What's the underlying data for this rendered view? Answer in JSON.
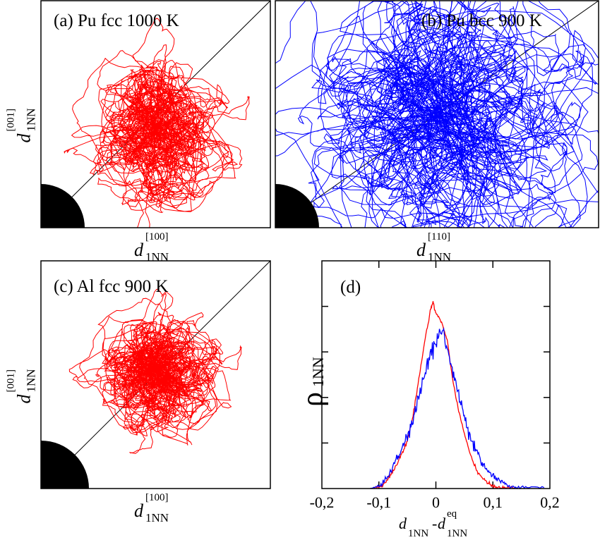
{
  "chart_data": [
    {
      "type": "line",
      "panel": "a",
      "title": "(a) Pu fcc 1000 K",
      "xlabel": {
        "symbol": "d",
        "superscript": "[100]",
        "subscript": "1NN"
      },
      "ylabel": {
        "symbol": "d",
        "superscript": "[001]",
        "subscript": "1NN"
      },
      "series": [
        {
          "color": "#ff0000"
        }
      ],
      "grid": false
    },
    {
      "type": "line",
      "panel": "b",
      "title": "(b) Pu bcc 900 K",
      "xlabel": {
        "symbol": "d",
        "superscript": "[110]",
        "subscript": "1NN"
      },
      "series": [
        {
          "color": "#0000ff"
        }
      ],
      "grid": false
    },
    {
      "type": "line",
      "panel": "c",
      "title": "(c) Al fcc 900 K",
      "xlabel": {
        "symbol": "d",
        "superscript": "[100]",
        "subscript": "1NN"
      },
      "ylabel": {
        "symbol": "d",
        "superscript": "[001]",
        "subscript": "1NN"
      },
      "series": [
        {
          "color": "#ff0000"
        }
      ],
      "grid": false
    },
    {
      "type": "line",
      "panel": "d",
      "title": "(d)",
      "xlabel": {
        "symbol1": "d",
        "sub1": "1NN",
        "sep": "-",
        "symbol2": "d",
        "sub2": "1NN",
        "sup2": "eq"
      },
      "ylabel": {
        "symbol": "ρ",
        "subscript": "1NN"
      },
      "xlim": [
        -0.2,
        0.2
      ],
      "ylim": [
        0,
        5
      ],
      "xticks": [
        "-0,2",
        "-0,1",
        "0",
        "0,1",
        "0,2"
      ],
      "xtick_values": [
        -0.2,
        -0.1,
        0,
        0.1,
        0.2
      ],
      "grid": false,
      "series": [
        {
          "color": "#ff0000",
          "x": [
            -0.11,
            -0.1,
            -0.09,
            -0.08,
            -0.07,
            -0.06,
            -0.05,
            -0.04,
            -0.03,
            -0.02,
            -0.01,
            -0.005,
            0,
            0.01,
            0.02,
            0.03,
            0.04,
            0.05,
            0.06,
            0.07,
            0.08,
            0.09,
            0.1,
            0.11,
            0.12,
            0.13,
            0.14
          ],
          "y": [
            0,
            0.04,
            0.12,
            0.28,
            0.5,
            0.75,
            1.05,
            1.6,
            2.4,
            3.2,
            3.9,
            4.1,
            3.85,
            3.65,
            3.25,
            2.35,
            1.7,
            1.2,
            0.75,
            0.45,
            0.24,
            0.12,
            0.06,
            0.03,
            0.02,
            0.01,
            0
          ]
        },
        {
          "color": "#0000ff",
          "x": [
            -0.115,
            -0.1,
            -0.09,
            -0.08,
            -0.07,
            -0.06,
            -0.05,
            -0.04,
            -0.03,
            -0.02,
            -0.01,
            0,
            0.01,
            0.02,
            0.03,
            0.04,
            0.05,
            0.06,
            0.07,
            0.08,
            0.09,
            0.1,
            0.11,
            0.12,
            0.13,
            0.14,
            0.16,
            0.19
          ],
          "y": [
            0,
            0.06,
            0.15,
            0.38,
            0.6,
            0.85,
            1.15,
            1.5,
            2.0,
            2.5,
            2.95,
            3.2,
            3.55,
            3.05,
            2.55,
            2.05,
            1.55,
            1.1,
            0.85,
            0.55,
            0.4,
            0.28,
            0.18,
            0.1,
            0.06,
            0.03,
            0.02,
            0.02
          ]
        }
      ]
    }
  ]
}
